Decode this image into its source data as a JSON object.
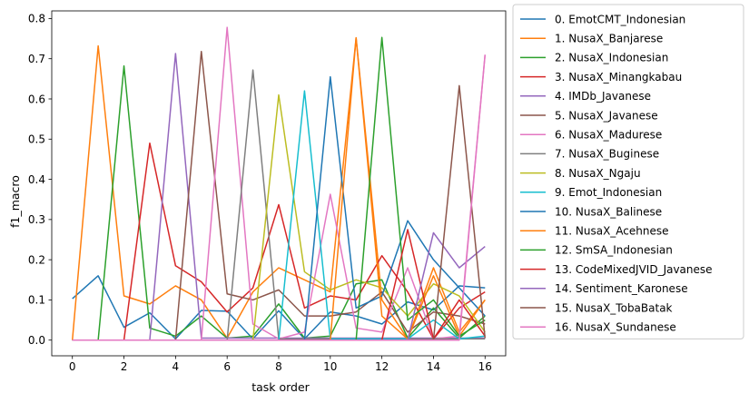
{
  "chart_data": {
    "type": "line",
    "title": "",
    "xlabel": "task order",
    "ylabel": "f1_macro",
    "xlim": [
      -0.8,
      16.8
    ],
    "ylim": [
      -0.039,
      0.819
    ],
    "xticks": [
      0,
      2,
      4,
      6,
      8,
      10,
      12,
      14,
      16
    ],
    "yticks": [
      0.0,
      0.1,
      0.2,
      0.3,
      0.4,
      0.5,
      0.6,
      0.7,
      0.8
    ],
    "ytick_labels": [
      "0.0",
      "0.1",
      "0.2",
      "0.3",
      "0.4",
      "0.5",
      "0.6",
      "0.7",
      "0.8"
    ],
    "grid": false,
    "legend_position": "outside-right",
    "x": [
      0,
      1,
      2,
      3,
      4,
      5,
      6,
      7,
      8,
      9,
      10,
      11,
      12,
      13,
      14,
      15,
      16
    ],
    "series": [
      {
        "name": "0. EmotCMT_Indonesian",
        "color": "#1f77b4",
        "values": [
          0.103,
          0.16,
          0.032,
          0.068,
          0.003,
          0.074,
          0.072,
          0.003,
          0.073,
          0.003,
          0.07,
          0.06,
          0.04,
          0.095,
          0.075,
          0.135,
          0.13
        ]
      },
      {
        "name": "1. NusaX_Banjarese",
        "color": "#ff7f0e",
        "values": [
          0.0,
          0.732,
          0.11,
          0.09,
          0.135,
          0.1,
          0.005,
          0.12,
          0.18,
          0.15,
          0.12,
          0.752,
          0.1,
          0.003,
          0.18,
          0.02,
          0.1
        ]
      },
      {
        "name": "2. NusaX_Indonesian",
        "color": "#2ca02c",
        "values": [
          0.0,
          0.0,
          0.682,
          0.03,
          0.01,
          0.06,
          0.005,
          0.01,
          0.09,
          0.005,
          0.01,
          0.14,
          0.15,
          0.005,
          0.08,
          0.005,
          0.06
        ]
      },
      {
        "name": "3. NusaX_Minangkabau",
        "color": "#d62728",
        "values": [
          0.0,
          0.0,
          0.0,
          0.49,
          0.185,
          0.145,
          0.07,
          0.13,
          0.337,
          0.08,
          0.11,
          0.1,
          0.21,
          0.12,
          0.003,
          0.08,
          0.12
        ]
      },
      {
        "name": "4. IMDb_Javanese",
        "color": "#9467bd",
        "values": [
          0.0,
          0.0,
          0.0,
          0.0,
          0.713,
          0.005,
          0.005,
          0.005,
          0.005,
          0.005,
          0.005,
          0.005,
          0.005,
          0.005,
          0.005,
          0.005,
          0.005
        ]
      },
      {
        "name": "5. NusaX_Javanese",
        "color": "#8c564b",
        "values": [
          0.0,
          0.0,
          0.0,
          0.0,
          0.0,
          0.718,
          0.115,
          0.1,
          0.125,
          0.06,
          0.06,
          0.07,
          0.12,
          0.02,
          0.07,
          0.06,
          0.04
        ]
      },
      {
        "name": "6. NusaX_Madurese",
        "color": "#e377c2",
        "values": [
          0.0,
          0.0,
          0.0,
          0.0,
          0.0,
          0.0,
          0.778,
          0.04,
          0.003,
          0.02,
          0.363,
          0.03,
          0.02,
          0.18,
          0.003,
          0.01,
          0.71
        ]
      },
      {
        "name": "7. NusaX_Buginese",
        "color": "#7f7f7f",
        "values": [
          0.0,
          0.0,
          0.0,
          0.0,
          0.0,
          0.0,
          0.0,
          0.672,
          0.003,
          0.003,
          0.003,
          0.003,
          0.003,
          0.003,
          0.003,
          0.003,
          0.003
        ]
      },
      {
        "name": "8. NusaX_Ngaju",
        "color": "#bcbd22",
        "values": [
          0.0,
          0.0,
          0.0,
          0.0,
          0.0,
          0.0,
          0.0,
          0.0,
          0.61,
          0.17,
          0.125,
          0.15,
          0.13,
          0.06,
          0.14,
          0.11,
          0.02
        ]
      },
      {
        "name": "9. Emot_Indonesian",
        "color": "#17becf",
        "values": [
          0.0,
          0.0,
          0.0,
          0.0,
          0.0,
          0.0,
          0.0,
          0.0,
          0.0,
          0.62,
          0.003,
          0.003,
          0.003,
          0.003,
          0.05,
          0.003,
          0.01
        ]
      },
      {
        "name": "10. NusaX_Balinese",
        "color": "#1f77b4",
        "values": [
          0.0,
          0.0,
          0.0,
          0.0,
          0.0,
          0.0,
          0.0,
          0.0,
          0.0,
          0.0,
          0.655,
          0.08,
          0.11,
          0.297,
          0.2,
          0.13,
          0.06
        ]
      },
      {
        "name": "11. NusaX_Acehnese",
        "color": "#ff7f0e",
        "values": [
          0.0,
          0.0,
          0.0,
          0.0,
          0.0,
          0.0,
          0.0,
          0.0,
          0.0,
          0.0,
          0.0,
          0.752,
          0.06,
          0.003,
          0.16,
          0.01,
          0.1
        ]
      },
      {
        "name": "12. SmSA_Indonesian",
        "color": "#2ca02c",
        "values": [
          0.0,
          0.0,
          0.0,
          0.0,
          0.0,
          0.0,
          0.0,
          0.0,
          0.0,
          0.0,
          0.0,
          0.0,
          0.753,
          0.05,
          0.1,
          0.01,
          0.05
        ]
      },
      {
        "name": "13. CodeMixedJVID_Javanese",
        "color": "#d62728",
        "values": [
          0.0,
          0.0,
          0.0,
          0.0,
          0.0,
          0.0,
          0.0,
          0.0,
          0.0,
          0.0,
          0.0,
          0.0,
          0.0,
          0.275,
          0.003,
          0.1,
          0.01
        ]
      },
      {
        "name": "14. Sentiment_Karonese",
        "color": "#9467bd",
        "values": [
          0.0,
          0.0,
          0.0,
          0.0,
          0.0,
          0.0,
          0.0,
          0.0,
          0.0,
          0.0,
          0.0,
          0.0,
          0.0,
          0.0,
          0.267,
          0.18,
          0.233
        ]
      },
      {
        "name": "15. NusaX_TobaBatak",
        "color": "#8c564b",
        "values": [
          0.0,
          0.0,
          0.0,
          0.0,
          0.0,
          0.0,
          0.0,
          0.0,
          0.0,
          0.0,
          0.0,
          0.0,
          0.0,
          0.0,
          0.0,
          0.633,
          0.005
        ]
      },
      {
        "name": "16. NusaX_Sundanese",
        "color": "#e377c2",
        "values": [
          0.0,
          0.0,
          0.0,
          0.0,
          0.0,
          0.0,
          0.0,
          0.0,
          0.0,
          0.0,
          0.0,
          0.0,
          0.0,
          0.0,
          0.0,
          0.0,
          0.71
        ]
      }
    ]
  }
}
